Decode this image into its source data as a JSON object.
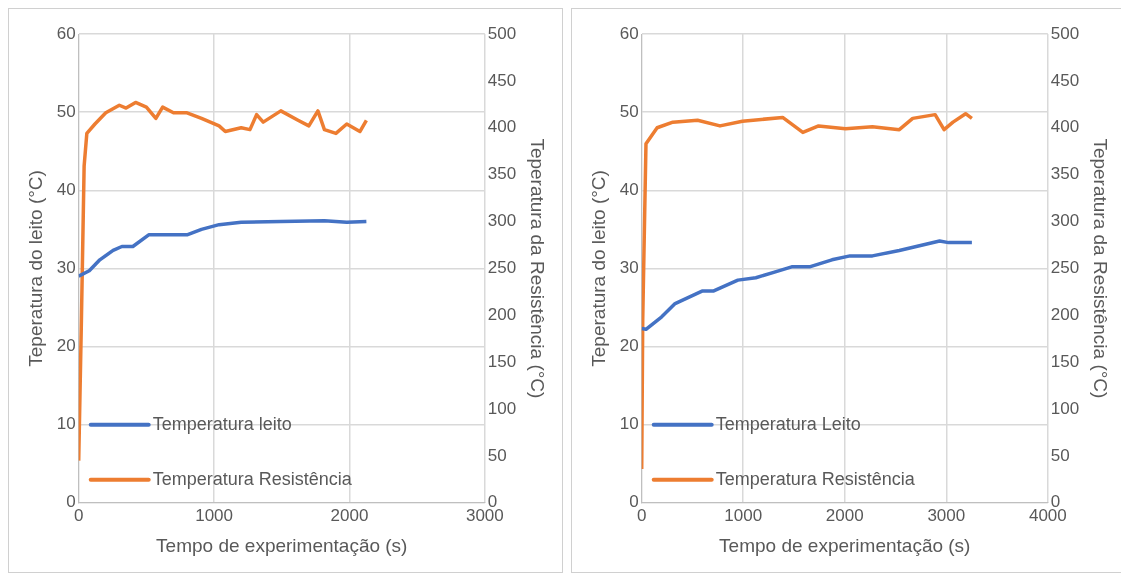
{
  "chart_data": [
    {
      "type": "line",
      "xlabel": "Tempo de experimentação (s)",
      "ylabel": "Teperatura do leito (°C)",
      "y2label": "Teperatura da Resistência (°C)",
      "xlim": [
        0,
        3000
      ],
      "xticks": [
        0,
        1000,
        2000,
        3000
      ],
      "ylim": [
        0,
        60
      ],
      "yticks": [
        0,
        10,
        20,
        30,
        40,
        50,
        60
      ],
      "y2lim": [
        0,
        500
      ],
      "y2ticks": [
        0,
        50,
        100,
        150,
        200,
        250,
        300,
        350,
        400,
        450,
        500
      ],
      "grid": true,
      "legend": "bottom left",
      "marker": "none",
      "line_style": "solid",
      "series": [
        {
          "name": "Temperatura leito",
          "color": "#4472c4",
          "x": [
            0,
            78,
            156,
            254,
            319,
            400,
            517,
            712,
            800,
            907,
            1037,
            1200,
            1493,
            1815,
            1980,
            2125
          ],
          "values": [
            29.0,
            29.7,
            31.1,
            32.3,
            32.8,
            32.8,
            34.3,
            34.3,
            34.3,
            35.0,
            35.6,
            35.9,
            36.0,
            36.1,
            35.9,
            36.0
          ]
        },
        {
          "name": "Temperatura Resistência",
          "color": "#ed7d31",
          "axis": "y2",
          "x": [
            0,
            20,
            40,
            60,
            120,
            200,
            300,
            350,
            420,
            500,
            570,
            620,
            700,
            800,
            907,
            1037,
            1083,
            1200,
            1265,
            1314,
            1363,
            1493,
            1620,
            1700,
            1767,
            1815,
            1900,
            1980,
            2077,
            2125
          ],
          "values": [
            45,
            195,
            359,
            394,
            404,
            416,
            424,
            421,
            427,
            422,
            410,
            422,
            416,
            416,
            410,
            402,
            396,
            400,
            398,
            414,
            406,
            418,
            408,
            402,
            418,
            398,
            394,
            404,
            396,
            408
          ]
        }
      ]
    },
    {
      "type": "line",
      "xlabel": "Tempo de experimentação (s)",
      "ylabel": "Teperatura do leito (°C)",
      "y2label": "Teperatura da Resistência (°C)",
      "xlim": [
        0,
        4000
      ],
      "xticks": [
        0,
        1000,
        2000,
        3000,
        4000
      ],
      "ylim": [
        0,
        60
      ],
      "yticks": [
        0,
        10,
        20,
        30,
        40,
        50,
        60
      ],
      "y2lim": [
        0,
        500
      ],
      "y2ticks": [
        0,
        50,
        100,
        150,
        200,
        250,
        300,
        350,
        400,
        450,
        500
      ],
      "grid": true,
      "legend": "bottom left",
      "marker": "none",
      "line_style": "solid",
      "series": [
        {
          "name": "Temperatura Leito",
          "color": "#4472c4",
          "x": [
            0,
            42,
            197,
            329,
            594,
            704,
            947,
            1124,
            1300,
            1477,
            1653,
            1874,
            2051,
            2272,
            2537,
            2934,
            3022,
            3252
          ],
          "values": [
            22.3,
            22.2,
            23.8,
            25.5,
            27.1,
            27.1,
            28.5,
            28.8,
            29.5,
            30.2,
            30.2,
            31.1,
            31.6,
            31.6,
            32.3,
            33.5,
            33.3,
            33.3
          ]
        },
        {
          "name": "Temperatura Resistência",
          "color": "#ed7d31",
          "axis": "y2",
          "x": [
            0,
            10,
            42,
            152,
            307,
            550,
            771,
            992,
            1388,
            1587,
            1742,
            2007,
            2272,
            2537,
            2669,
            2890,
            2978,
            3066,
            3190,
            3252
          ],
          "values": [
            36,
            195,
            383,
            400,
            406,
            408,
            402,
            407,
            411,
            395,
            402,
            399,
            401,
            398,
            410,
            414,
            398,
            406,
            415,
            410
          ]
        }
      ]
    }
  ]
}
